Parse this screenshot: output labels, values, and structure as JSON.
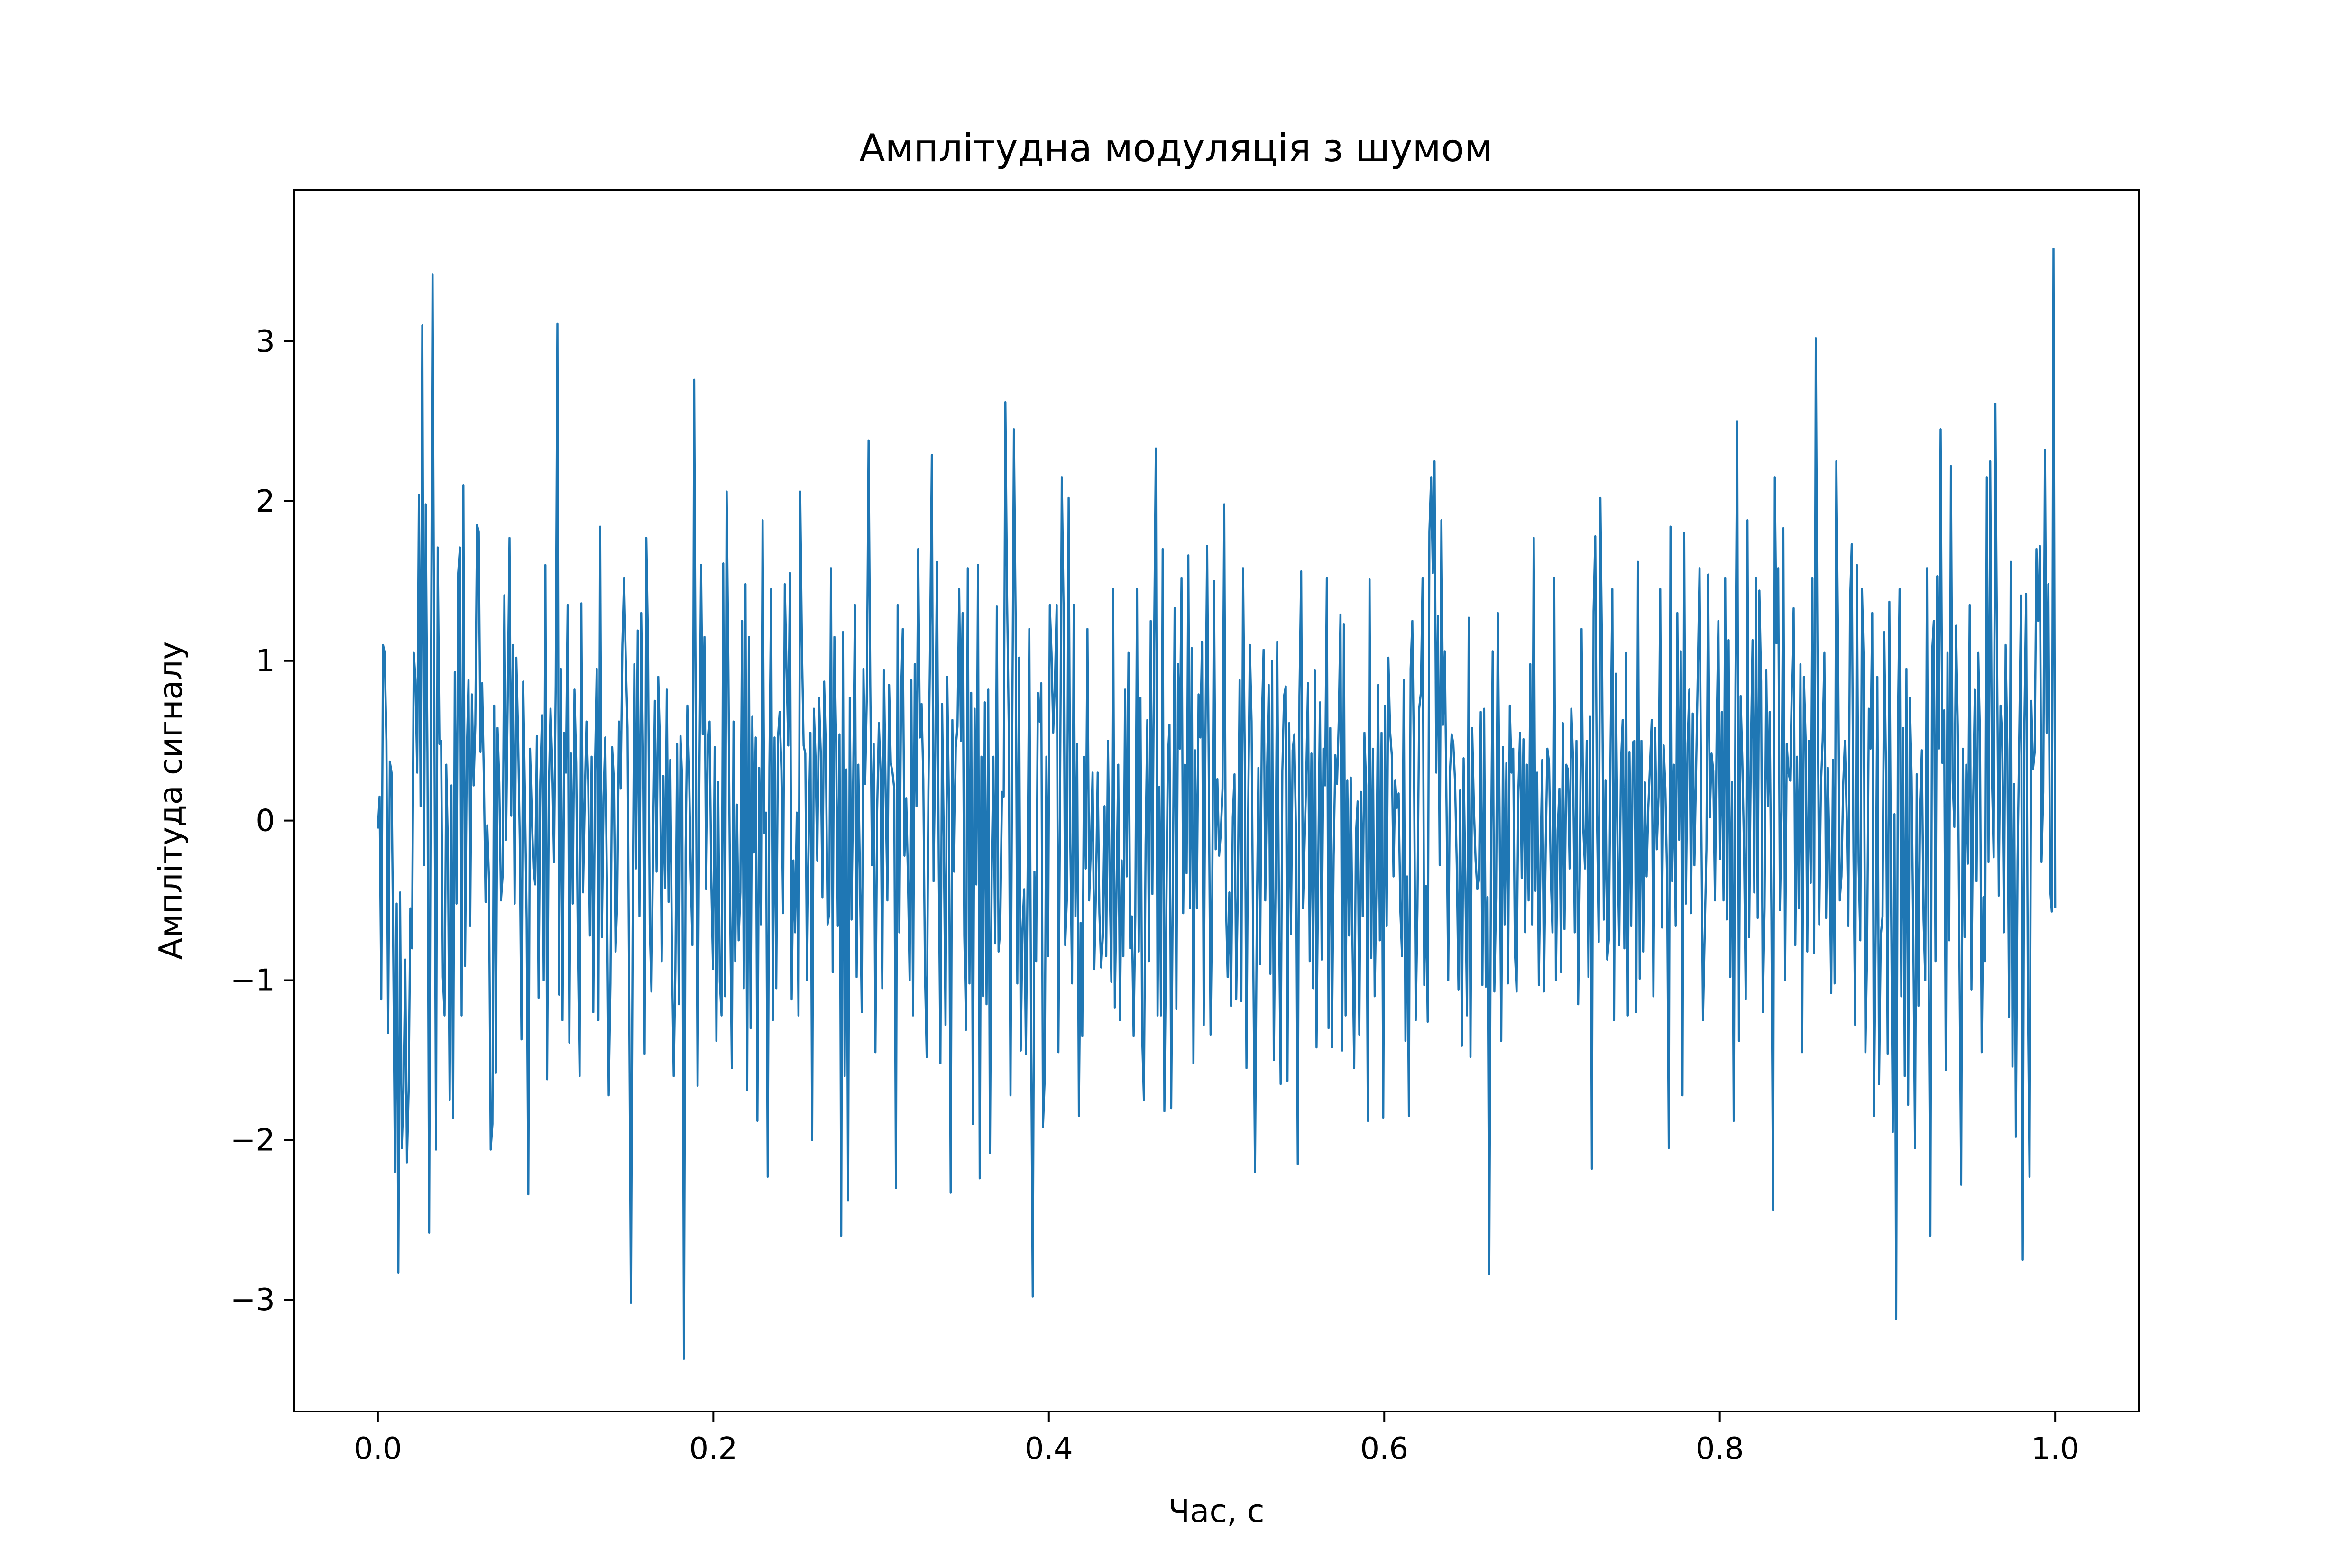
{
  "chart_data": {
    "type": "line",
    "title": "Амплітудна модуляція з шумом",
    "xlabel": "Час, с",
    "ylabel": "Амплітуда сигналу",
    "xlim": [
      -0.05,
      1.05
    ],
    "ylim": [
      -3.7,
      3.95
    ],
    "xticks": [
      0.0,
      0.2,
      0.4,
      0.6,
      0.8,
      1.0
    ],
    "xtick_labels": [
      "0.0",
      "0.2",
      "0.4",
      "0.6",
      "0.8",
      "1.0"
    ],
    "yticks": [
      -3,
      -2,
      -1,
      0,
      1,
      2,
      3
    ],
    "ytick_labels": [
      "−3",
      "−2",
      "−1",
      "0",
      "1",
      "2",
      "3"
    ],
    "grid": false,
    "legend": "none",
    "series": [
      {
        "color": "#1f77b4",
        "x_start": 0.0,
        "x_end": 1.0,
        "values": [
          -0.05,
          0.15,
          -1.12,
          1.1,
          1.05,
          0.5,
          -1.33,
          0.37,
          0.3,
          -0.8,
          -2.2,
          -0.52,
          -2.83,
          -0.45,
          -2.05,
          -1.7,
          -0.87,
          -2.14,
          -1.69,
          -0.55,
          -0.8,
          1.05,
          0.88,
          0.3,
          2.04,
          0.09,
          3.1,
          -0.28,
          1.98,
          0.43,
          -2.58,
          0.62,
          3.42,
          0.74,
          -2.06,
          1.71,
          0.48,
          0.5,
          -0.98,
          -1.22,
          0.35,
          -0.19,
          -1.75,
          0.22,
          -1.86,
          0.93,
          -0.52,
          1.55,
          1.71,
          -1.22,
          2.1,
          -0.91,
          0.41,
          0.88,
          -0.66,
          0.79,
          0.22,
          0.6,
          1.85,
          1.81,
          0.43,
          0.86,
          0.27,
          -0.51,
          -0.03,
          -0.37,
          -2.06,
          -1.9,
          0.72,
          -1.58,
          0.58,
          0.24,
          -0.5,
          -0.34,
          1.41,
          -0.12,
          0.82,
          1.77,
          0.03,
          1.1,
          -0.52,
          1.02,
          0.55,
          -0.12,
          -1.37,
          0.87,
          0.16,
          -0.62,
          -2.34,
          0.45,
          0.05,
          -0.3,
          -0.4,
          0.53,
          -1.11,
          0.24,
          0.66,
          -1.0,
          1.6,
          -1.62,
          0.18,
          0.7,
          0.35,
          -0.26,
          0.85,
          3.11,
          -1.09,
          0.95,
          -1.25,
          0.55,
          0.3,
          1.35,
          -1.39,
          0.42,
          -0.52,
          0.82,
          0.36,
          -0.8,
          -1.6,
          1.36,
          -0.45,
          0.14,
          0.62,
          0.25,
          -0.72,
          0.4,
          -1.2,
          0.32,
          0.95,
          -1.25,
          1.84,
          -0.73,
          0.15,
          0.52,
          -0.43,
          -1.72,
          -1.02,
          0.46,
          0.25,
          -0.82,
          -0.5,
          0.62,
          0.2,
          1.1,
          1.52,
          1.0,
          0.58,
          -1.15,
          -3.02,
          -0.7,
          0.98,
          -0.3,
          1.19,
          -0.6,
          1.3,
          0.45,
          -1.46,
          1.77,
          1.1,
          -0.65,
          -1.07,
          -0.12,
          0.75,
          -0.32,
          0.9,
          0.46,
          -0.88,
          0.28,
          -0.42,
          0.82,
          -0.51,
          0.38,
          -0.85,
          -1.6,
          -0.93,
          0.48,
          -1.15,
          0.53,
          0.24,
          -3.37,
          -0.18,
          0.72,
          0.33,
          -0.35,
          -0.78,
          2.76,
          0.5,
          -1.66,
          0.22,
          1.6,
          0.54,
          1.15,
          -0.43,
          0.48,
          0.62,
          -0.38,
          -0.93,
          0.46,
          -1.38,
          0.24,
          -1.01,
          -1.22,
          1.61,
          -1.1,
          2.06,
          0.98,
          -0.55,
          -1.55,
          0.62,
          -0.88,
          0.1,
          -0.75,
          -0.45,
          1.25,
          -1.05,
          1.48,
          -1.69,
          1.15,
          -1.3,
          0.65,
          -0.2,
          0.52,
          -1.88,
          0.33,
          -0.65,
          1.88,
          -0.08,
          0.05,
          -2.23,
          0.33,
          1.45,
          -1.25,
          0.52,
          -1.05,
          0.52,
          0.68,
          0.32,
          -0.58,
          1.48,
          0.96,
          0.47,
          1.55,
          -1.12,
          -0.25,
          -0.7,
          0.05,
          -1.22,
          2.06,
          1.1,
          0.47,
          0.42,
          -1.0,
          -0.06,
          0.55,
          -2.0,
          0.7,
          0.39,
          -0.25,
          0.77,
          0.43,
          -0.48,
          0.87,
          0.44,
          -0.65,
          -0.58,
          1.58,
          -0.95,
          1.15,
          0.52,
          -0.66,
          0.54,
          -2.6,
          1.18,
          -1.6,
          0.32,
          -2.38,
          0.77,
          -0.62,
          0.25,
          1.35,
          -0.98,
          0.35,
          -0.4,
          -1.2,
          0.95,
          0.23,
          0.8,
          2.38,
          0.85,
          -0.28,
          0.48,
          -1.45,
          0.06,
          0.61,
          0.3,
          -1.05,
          0.94,
          0.15,
          -0.5,
          0.85,
          0.36,
          0.3,
          0.2,
          -2.3,
          1.35,
          -0.7,
          0.78,
          1.2,
          -0.22,
          0.14,
          -0.35,
          -1.0,
          0.88,
          -1.22,
          0.98,
          0.09,
          1.7,
          0.52,
          0.73,
          0.26,
          -0.96,
          -1.48,
          0.18,
          1.13,
          2.29,
          -0.38,
          0.42,
          1.62,
          -0.23,
          -1.52,
          0.73,
          -0.14,
          -1.28,
          0.9,
          0.1,
          -2.33,
          0.63,
          -0.32,
          0.46,
          0.59,
          1.45,
          0.5,
          1.3,
          -0.72,
          -1.31,
          1.58,
          -1.02,
          0.8,
          -1.9,
          0.7,
          -0.4,
          1.6,
          -2.24,
          0.4,
          -1.1,
          0.74,
          -1.15,
          0.82,
          -2.08,
          -0.32,
          0.4,
          -0.77,
          1.34,
          -0.82,
          -0.68,
          0.18,
          0.15,
          2.62,
          1.4,
          0.58,
          -1.72,
          0.52,
          2.45,
          1.28,
          -1.02,
          1.02,
          -1.44,
          -0.68,
          -0.43,
          -1.46,
          -0.35,
          1.2,
          -1.22,
          -2.98,
          -0.32,
          -0.88,
          0.8,
          0.62,
          0.86,
          -1.92,
          -1.62,
          0.4,
          -0.85,
          1.35,
          1.05,
          0.55,
          0.87,
          1.35,
          -1.45,
          0.18,
          2.15,
          1.35,
          -0.78,
          -0.48,
          2.02,
          -0.15,
          -1.02,
          1.35,
          -0.6,
          0.48,
          -1.85,
          -0.64,
          -1.35,
          0.4,
          -0.3,
          1.2,
          -0.5,
          -0.17,
          0.3,
          -0.93,
          -0.42,
          0.3,
          -0.58,
          -0.92,
          -0.73,
          0.09,
          -0.85,
          0.5,
          -0.35,
          -1.01,
          1.45,
          -1.17,
          -0.44,
          0.35,
          -1.25,
          -0.25,
          -0.85,
          0.82,
          -0.35,
          1.05,
          -0.8,
          -0.6,
          -1.35,
          -0.6,
          1.45,
          -0.82,
          0.77,
          -1.34,
          -1.75,
          -0.15,
          0.63,
          -0.88,
          1.25,
          -0.46,
          1.12,
          2.33,
          -1.22,
          0.21,
          -1.22,
          1.7,
          -1.82,
          -0.75,
          0.38,
          0.6,
          -1.8,
          -0.31,
          1.33,
          -1.18,
          0.98,
          0.45,
          1.52,
          -0.58,
          0.35,
          -0.33,
          1.66,
          -0.55,
          1.08,
          -1.52,
          0.44,
          -0.55,
          0.79,
          0.52,
          1.12,
          -1.28,
          0.52,
          1.72,
          0.22,
          -1.34,
          -0.45,
          1.5,
          -0.18,
          0.26,
          -0.22,
          -0.08,
          0.2,
          1.98,
          -0.5,
          -0.98,
          -0.45,
          -1.16,
          0.02,
          0.29,
          -1.12,
          -0.4,
          0.88,
          -1.13,
          1.58,
          0.42,
          -1.55,
          0.04,
          1.1,
          0.62,
          -0.88,
          -2.2,
          -0.72,
          0.33,
          -0.9,
          0.62,
          1.07,
          -0.5,
          0.28,
          0.85,
          -0.96,
          1.0,
          -1.5,
          -0.38,
          1.12,
          -0.55,
          -1.65,
          0.31,
          0.78,
          0.84,
          -1.63,
          0.61,
          -0.71,
          0.44,
          0.54,
          -0.1,
          -2.15,
          0.78,
          1.56,
          -0.55,
          -0.15,
          0.29,
          0.86,
          -0.88,
          0.42,
          -1.05,
          0.94,
          -1.42,
          -0.28,
          0.74,
          -0.87,
          0.45,
          0.22,
          1.52,
          -1.3,
          0.58,
          -1.42,
          -0.22,
          0.41,
          0.23,
          0.63,
          1.29,
          -1.44,
          1.23,
          -1.22,
          0.25,
          -0.72,
          0.27,
          -0.76,
          -1.55,
          -0.1,
          0.12,
          -1.34,
          0.18,
          -0.6,
          0.55,
          0.22,
          -1.88,
          1.51,
          -0.86,
          0.45,
          -1.1,
          -0.42,
          0.85,
          -0.75,
          0.55,
          -1.86,
          0.72,
          -0.66,
          1.02,
          0.56,
          0.41,
          -0.35,
          0.25,
          0.08,
          0.17,
          -0.56,
          -0.85,
          0.88,
          -1.38,
          -0.35,
          -1.85,
          0.95,
          1.25,
          0.32,
          -1.25,
          -0.55,
          0.7,
          0.8,
          1.52,
          -1.03,
          -0.41,
          -1.26,
          1.81,
          2.15,
          1.55,
          2.25,
          0.3,
          1.28,
          -0.28,
          1.88,
          0.6,
          1.06,
          0.09,
          -1.0,
          0.3,
          0.54,
          0.48,
          0.24,
          -0.28,
          -1.06,
          0.19,
          -1.41,
          0.39,
          -0.36,
          -1.22,
          1.27,
          -1.48,
          0.58,
          0.08,
          -0.25,
          -0.43,
          -0.37,
          0.68,
          -1.03,
          0.7,
          -1.04,
          -0.48,
          -2.84,
          -0.27,
          1.06,
          -1.07,
          -0.48,
          1.3,
          0.05,
          -1.38,
          0.46,
          -0.65,
          0.36,
          -1.02,
          0.72,
          0.3,
          0.45,
          -0.82,
          -1.07,
          0.18,
          0.55,
          -0.36,
          0.51,
          -0.7,
          0.35,
          -0.5,
          0.98,
          -0.65,
          1.77,
          -0.44,
          0.3,
          -1.03,
          -0.22,
          0.38,
          -1.07,
          -0.18,
          0.45,
          0.36,
          -0.35,
          -0.7,
          1.52,
          -1.0,
          -0.06,
          0.2,
          -0.95,
          0.61,
          -0.68,
          0.35,
          0.32,
          -0.3,
          0.7,
          0.38,
          -0.7,
          0.5,
          -1.15,
          -0.3,
          1.2,
          -0.05,
          -0.3,
          0.5,
          -0.98,
          0.65,
          -2.18,
          1.31,
          1.78,
          0.04,
          -0.76,
          2.02,
          0.98,
          -0.62,
          0.25,
          -0.87,
          -0.74,
          0.5,
          1.45,
          -1.25,
          0.92,
          -0.15,
          -0.78,
          0.35,
          0.63,
          -0.8,
          1.05,
          -1.22,
          0.43,
          -0.66,
          0.49,
          0.5,
          -1.2,
          1.62,
          -0.99,
          0.5,
          -0.82,
          0.24,
          -0.35,
          0.08,
          0.35,
          0.63,
          -1.1,
          0.58,
          -0.18,
          0.15,
          1.45,
          -0.67,
          0.47,
          0.2,
          -0.36,
          -2.05,
          1.84,
          -0.38,
          0.35,
          -0.66,
          1.3,
          -0.12,
          1.06,
          -1.72,
          1.8,
          -0.52,
          0.48,
          0.82,
          -0.58,
          0.67,
          -0.28,
          0.33,
          0.94,
          1.58,
          0.05,
          -1.25,
          -0.7,
          -0.18,
          1.54,
          0.02,
          0.42,
          0.31,
          -0.5,
          0.55,
          1.25,
          -0.24,
          0.68,
          -0.5,
          1.52,
          -0.62,
          1.13,
          -0.98,
          0.24,
          -1.88,
          0.84,
          2.5,
          -1.38,
          0.78,
          0.38,
          -0.18,
          -1.12,
          1.88,
          -0.73,
          0.42,
          1.13,
          -0.45,
          1.52,
          -0.61,
          1.44,
          0.87,
          -1.2,
          -0.55,
          0.94,
          0.09,
          0.68,
          -0.56,
          -2.44,
          2.15,
          1.11,
          1.58,
          -0.56,
          0.06,
          1.83,
          -1.0,
          0.48,
          0.3,
          0.25,
          0.85,
          1.33,
          -0.78,
          0.4,
          -0.55,
          0.98,
          -1.45,
          0.9,
          0.52,
          -0.82,
          0.5,
          -0.39,
          1.52,
          -0.83,
          3.02,
          0.98,
          -0.65,
          0.22,
          0.5,
          1.05,
          -0.61,
          0.33,
          -0.22,
          -1.08,
          0.38,
          -1.02,
          2.25,
          1.12,
          -0.5,
          -0.35,
          0.22,
          0.5,
          0.05,
          -0.66,
          1.35,
          1.73,
          -0.2,
          -1.28,
          1.6,
          -0.26,
          -0.75,
          1.45,
          0.98,
          -1.45,
          -0.8,
          0.7,
          0.45,
          1.3,
          -1.85,
          -0.7,
          0.9,
          -1.65,
          -0.72,
          -0.6,
          1.18,
          0.32,
          -1.46,
          1.37,
          -0.47,
          -1.95,
          0.04,
          -3.12,
          0.57,
          1.45,
          -1.1,
          0.58,
          -1.6,
          0.95,
          -1.78,
          0.77,
          0.27,
          -0.75,
          -2.05,
          0.29,
          -1.16,
          0.13,
          0.44,
          -0.62,
          -1.0,
          1.58,
          -0.94,
          -2.6,
          1.05,
          1.25,
          -0.88,
          1.53,
          0.45,
          2.45,
          0.36,
          0.69,
          -1.56,
          1.05,
          -0.75,
          2.22,
          0.26,
          -0.04,
          1.22,
          0.59,
          -0.89,
          -2.28,
          0.45,
          -0.73,
          0.35,
          -0.27,
          1.35,
          -1.06,
          0.12,
          0.82,
          -0.38,
          1.05,
          0.52,
          -1.45,
          -0.48,
          -0.88,
          2.15,
          -0.26,
          2.25,
          0.28,
          -0.23,
          2.61,
          1.02,
          -0.47,
          0.72,
          0.52,
          -0.7,
          1.1,
          0.44,
          -1.23,
          1.62,
          -1.54,
          0.23,
          -1.98,
          -0.25,
          0.55,
          1.41,
          -2.75,
          0.62,
          1.42,
          -1.05,
          -2.23,
          0.75,
          0.32,
          0.43,
          1.7,
          1.25,
          1.72,
          -0.26,
          0.18,
          2.32,
          0.55,
          1.48,
          -0.42,
          -0.57,
          3.58,
          -0.55
        ]
      }
    ]
  }
}
